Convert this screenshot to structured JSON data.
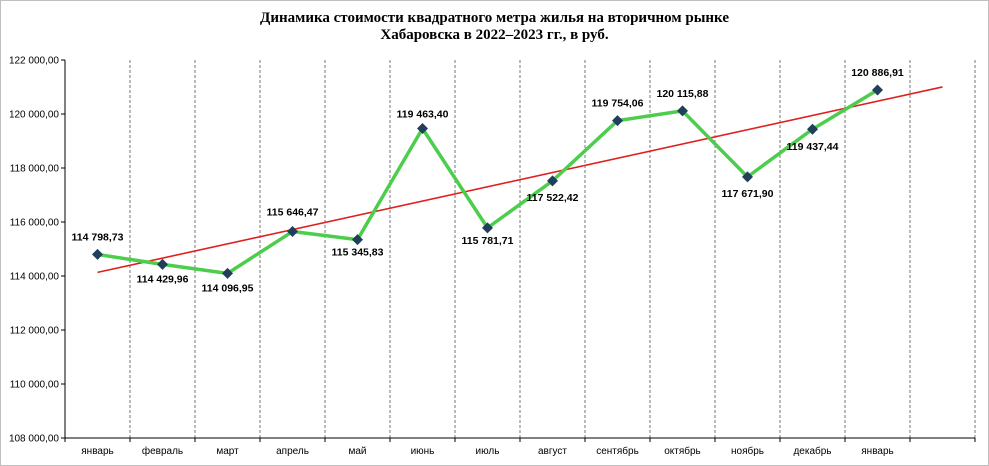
{
  "chart_data": {
    "type": "line",
    "title_line1": "Динамика стоимости квадратного метра жилья на вторичном рынке",
    "title_line2": "Хабаровска в 2022–2023 гг., в руб.",
    "categories": [
      "январь",
      "февраль",
      "март",
      "апрель",
      "май",
      "июнь",
      "июль",
      "август",
      "сентябрь",
      "октябрь",
      "ноябрь",
      "декабрь",
      "январь"
    ],
    "series": [
      {
        "values": [
          114798.73,
          114429.96,
          114096.95,
          115646.47,
          115345.83,
          119463.4,
          115781.71,
          117522.42,
          119754.06,
          120115.88,
          117671.9,
          119437.44,
          120886.91
        ],
        "labels": [
          "114 798,73",
          "114 429,96",
          "114 096,95",
          "115 646,47",
          "115 345,83",
          "119 463,40",
          "115 781,71",
          "117 522,42",
          "119 754,06",
          "120 115,88",
          "117 671,90",
          "119 437,44",
          "120 886,91"
        ],
        "line_color": "#4ccd4c",
        "marker_color": "#1f3f5a"
      }
    ],
    "trendline": {
      "type": "linear",
      "color": "#e0201e"
    },
    "y_ticks": [
      "108 000,00",
      "110 000,00",
      "112 000,00",
      "114 000,00",
      "116 000,00",
      "118 000,00",
      "120 000,00",
      "122 000,00"
    ],
    "ylim": [
      108000,
      122000
    ],
    "grid": "vertical dashed",
    "xlabel": "",
    "ylabel": ""
  }
}
